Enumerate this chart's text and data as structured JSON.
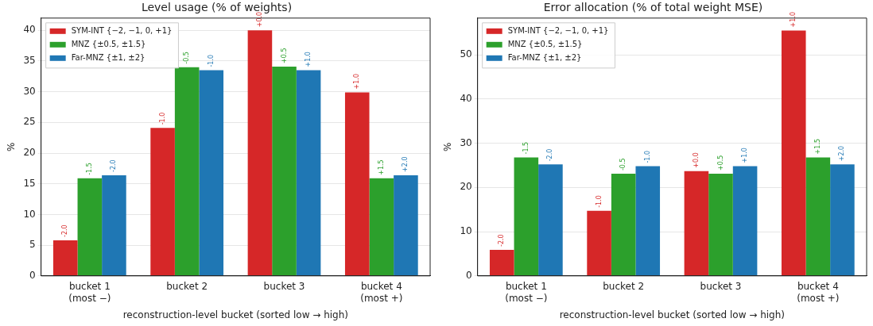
{
  "chart_data": [
    {
      "type": "bar",
      "title": "Level usage (% of weights)",
      "xlabel": "reconstruction-level bucket (sorted low → high)",
      "ylabel": "%",
      "categories": [
        "bucket 1\n(most −)",
        "bucket 2",
        "bucket 3",
        "bucket 4\n(most +)"
      ],
      "series": [
        {
          "name": "SYM-INT {−2, −1, 0, +1}",
          "color": "#d62728",
          "values": [
            5.8,
            24.1,
            40.0,
            29.9
          ]
        },
        {
          "name": "MNZ {±0.5, ±1.5}",
          "color": "#2ca02c",
          "values": [
            15.9,
            34.0,
            34.1,
            15.9
          ]
        },
        {
          "name": "Far-MNZ {±1, ±2}",
          "color": "#1f77b4",
          "values": [
            16.4,
            33.5,
            33.5,
            16.4
          ]
        }
      ],
      "annotations": [
        "-2.0",
        "-1.0",
        "+0.0",
        "+1.0",
        "-1.5",
        "-0.5",
        "+0.5",
        "+1.5",
        "-2.0",
        "-1.0",
        "+1.0",
        "+2.0"
      ],
      "ylim": [
        0,
        42
      ],
      "yticks": [
        0,
        5,
        10,
        15,
        20,
        25,
        30,
        35,
        40
      ],
      "grid": "y",
      "legend": "top left"
    },
    {
      "type": "bar",
      "title": "Error allocation (% of total weight MSE)",
      "xlabel": "reconstruction-level bucket (sorted low → high)",
      "ylabel": "%",
      "categories": [
        "bucket 1\n(most −)",
        "bucket 2",
        "bucket 3",
        "bucket 4\n(most +)"
      ],
      "series": [
        {
          "name": "SYM-INT {−2, −1, 0, +1}",
          "color": "#d62728",
          "values": [
            5.9,
            14.7,
            23.7,
            55.5
          ]
        },
        {
          "name": "MNZ {±0.5, ±1.5}",
          "color": "#2ca02c",
          "values": [
            26.8,
            23.1,
            23.1,
            26.8
          ]
        },
        {
          "name": "Far-MNZ {±1, ±2}",
          "color": "#1f77b4",
          "values": [
            25.2,
            24.8,
            24.8,
            25.2
          ]
        }
      ],
      "annotations": [
        "-2.0",
        "-1.0",
        "+0.0",
        "+1.0",
        "-1.5",
        "-0.5",
        "+0.5",
        "+1.5",
        "-2.0",
        "-1.0",
        "+1.0",
        "+2.0"
      ],
      "ylim": [
        0,
        58.3
      ],
      "yticks": [
        0,
        10,
        20,
        30,
        40,
        50
      ],
      "grid": "y",
      "legend": "top left"
    }
  ]
}
